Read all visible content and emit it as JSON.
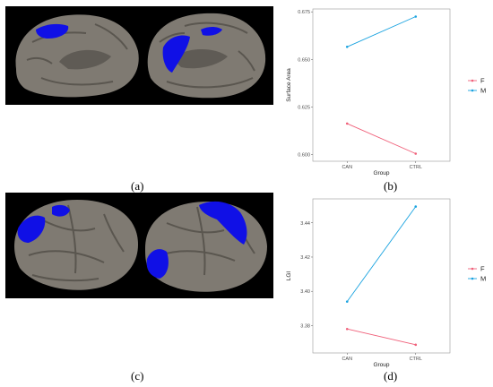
{
  "panels": {
    "a": "(a)",
    "b": "(b)",
    "c": "(c)",
    "d": "(d)"
  },
  "colors": {
    "F": "#f0607a",
    "M": "#1aa3e0",
    "highlight": "#1010e6",
    "cortex": "#7f7a72",
    "frame": "#9a9a9a"
  },
  "chart_data": [
    {
      "id": "b",
      "type": "line",
      "title": "",
      "xlabel": "Group",
      "ylabel": "Surface Area",
      "categories": [
        "CAN",
        "CTRL"
      ],
      "series": [
        {
          "name": "F",
          "values": [
            0.6163,
            0.6005
          ]
        },
        {
          "name": "M",
          "values": [
            0.6566,
            0.6725
          ]
        }
      ],
      "ylim": [
        0.5965,
        0.6765
      ],
      "yticks": [
        0.6,
        0.625,
        0.65,
        0.675
      ],
      "ytick_labels": [
        "0.600",
        "0.625",
        "0.650",
        "0.675"
      ],
      "grid": false,
      "legend": "right"
    },
    {
      "id": "d",
      "type": "line",
      "title": "",
      "xlabel": "Group",
      "ylabel": "LGI",
      "categories": [
        "CAN",
        "CTRL"
      ],
      "series": [
        {
          "name": "F",
          "values": [
            3.378,
            3.3688
          ]
        },
        {
          "name": "M",
          "values": [
            3.394,
            3.4495
          ]
        }
      ],
      "ylim": [
        3.364,
        3.454
      ],
      "yticks": [
        3.38,
        3.4,
        3.42,
        3.44
      ],
      "ytick_labels": [
        "3.38",
        "3.40",
        "3.42",
        "3.44"
      ],
      "grid": false,
      "legend": "right"
    }
  ]
}
